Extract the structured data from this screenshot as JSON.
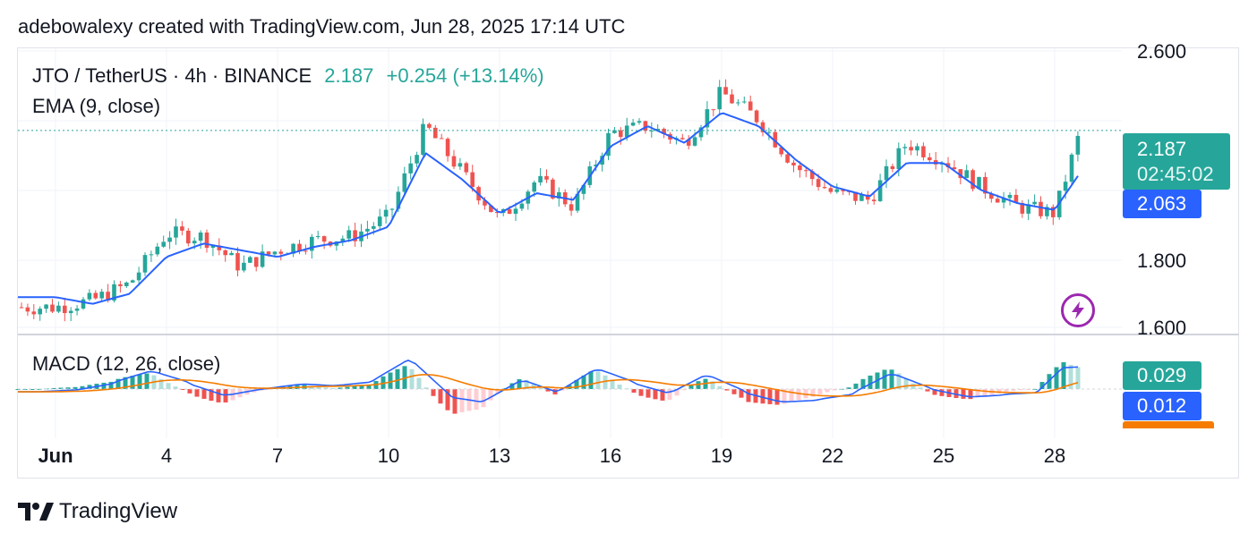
{
  "header": {
    "text": "adebowalexy created with TradingView.com, Jun 28, 2025 17:14 UTC"
  },
  "legend": {
    "symbol": "JTO / TetherUS · 4h · BINANCE",
    "last": "2.187",
    "change": "+0.254 (+13.14%)",
    "ema": "EMA (9, close)",
    "macd": "MACD (12, 26, close)"
  },
  "price_tags": {
    "last": "2.187",
    "countdown": "02:45:02",
    "ema": "2.063",
    "macd": "0.029",
    "signal": "0.012"
  },
  "footer": {
    "brand": "TradingView"
  },
  "colors": {
    "up": "#26a69a",
    "down": "#ef5350",
    "ema": "#2962ff",
    "macd": "#2962ff",
    "signal": "#f57c00",
    "grid": "#f0f3fa",
    "hist_up_light": "#b2dfdb",
    "hist_down_light": "#ffcdd2"
  },
  "chart_data": {
    "type": "line",
    "title": "JTO / TetherUS · 4h · BINANCE",
    "price_axis_ticks": [
      "2.600",
      "1.800",
      "1.600"
    ],
    "x_ticks": [
      "Jun",
      "4",
      "7",
      "10",
      "13",
      "16",
      "19",
      "22",
      "25",
      "28"
    ],
    "ylim": [
      1.6,
      2.6
    ],
    "last_price": 2.187,
    "ema_last": 2.063,
    "series": [
      {
        "name": "Price",
        "points": [
          [
            "Jun 1",
            1.66
          ],
          [
            "Jun 2",
            1.68
          ],
          [
            "Jun 3",
            1.73
          ],
          [
            "Jun 4",
            1.88
          ],
          [
            "Jun 5",
            1.87
          ],
          [
            "Jun 6",
            1.78
          ],
          [
            "Jun 7",
            1.83
          ],
          [
            "Jun 8",
            1.86
          ],
          [
            "Jun 9",
            1.87
          ],
          [
            "Jun 10",
            1.93
          ],
          [
            "Jun 11",
            2.2
          ],
          [
            "Jun 12",
            2.06
          ],
          [
            "Jun 13",
            1.92
          ],
          [
            "Jun 14",
            2.04
          ],
          [
            "Jun 15",
            1.96
          ],
          [
            "Jun 16",
            2.18
          ],
          [
            "Jun 17",
            2.2
          ],
          [
            "Jun 18",
            2.15
          ],
          [
            "Jun 19",
            2.3
          ],
          [
            "Jun 20",
            2.22
          ],
          [
            "Jun 21",
            2.08
          ],
          [
            "Jun 22",
            2.0
          ],
          [
            "Jun 23",
            1.98
          ],
          [
            "Jun 24",
            2.15
          ],
          [
            "Jun 25",
            2.1
          ],
          [
            "Jun 26",
            2.02
          ],
          [
            "Jun 27",
            1.96
          ],
          [
            "Jun 28",
            1.94
          ],
          [
            "Jun 28 17:00",
            2.187
          ]
        ]
      },
      {
        "name": "EMA (9, close)",
        "points": [
          [
            "Jun 1",
            1.69
          ],
          [
            "Jun 2",
            1.67
          ],
          [
            "Jun 3",
            1.7
          ],
          [
            "Jun 4",
            1.81
          ],
          [
            "Jun 5",
            1.85
          ],
          [
            "Jun 6",
            1.83
          ],
          [
            "Jun 7",
            1.81
          ],
          [
            "Jun 8",
            1.84
          ],
          [
            "Jun 9",
            1.86
          ],
          [
            "Jun 10",
            1.9
          ],
          [
            "Jun 11",
            2.12
          ],
          [
            "Jun 12",
            2.04
          ],
          [
            "Jun 13",
            1.94
          ],
          [
            "Jun 14",
            2.0
          ],
          [
            "Jun 15",
            1.98
          ],
          [
            "Jun 16",
            2.14
          ],
          [
            "Jun 17",
            2.2
          ],
          [
            "Jun 18",
            2.15
          ],
          [
            "Jun 19",
            2.24
          ],
          [
            "Jun 20",
            2.2
          ],
          [
            "Jun 21",
            2.1
          ],
          [
            "Jun 22",
            2.02
          ],
          [
            "Jun 23",
            1.99
          ],
          [
            "Jun 24",
            2.09
          ],
          [
            "Jun 25",
            2.09
          ],
          [
            "Jun 26",
            2.01
          ],
          [
            "Jun 27",
            1.97
          ],
          [
            "Jun 28",
            1.95
          ],
          [
            "Jun 28 17:00",
            2.063
          ]
        ]
      }
    ],
    "macd": {
      "name": "MACD (12, 26, close)",
      "macd_last": 0.029,
      "signal_last": 0.012
    }
  }
}
